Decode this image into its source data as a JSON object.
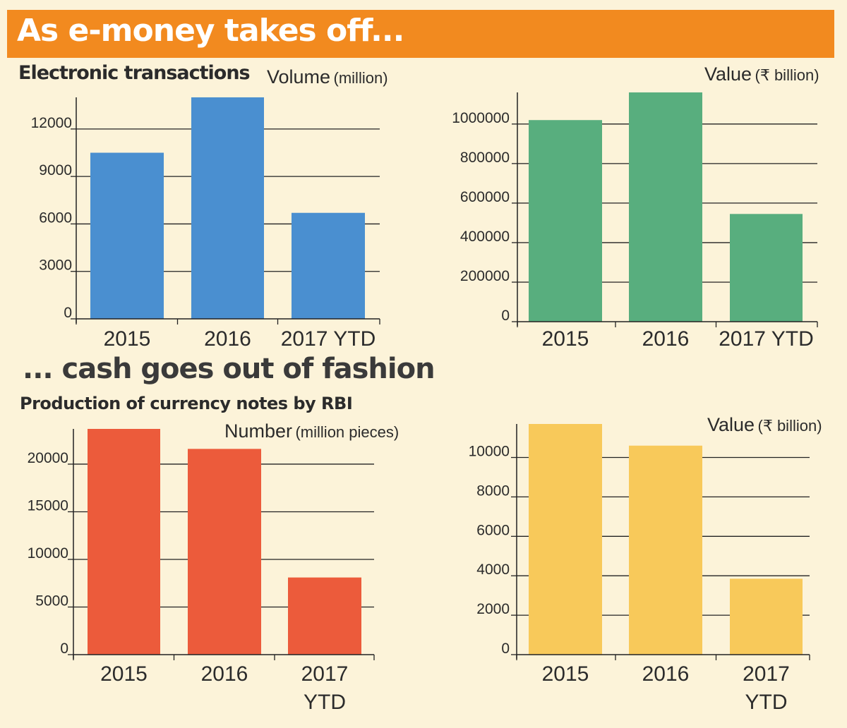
{
  "banner": {
    "title": "As e-money takes off..."
  },
  "sections": {
    "emoney_title": "Electronic transactions",
    "cash_headline": "... cash goes out of fashion",
    "cash_title": "Production of currency notes by RBI"
  },
  "units": {
    "volume_main": "Volume",
    "volume_paren": "(million)",
    "value_main": "Value",
    "value_paren": "(₹ billion)",
    "number_main": "Number",
    "number_paren": "(million pieces)"
  },
  "colors": {
    "banner": "#f28a1f",
    "background": "#fcf3d9",
    "blue": "#4a8fd0",
    "green": "#58ae7e",
    "red": "#ec5b3b",
    "yellow": "#f8c95a"
  },
  "chart_data": [
    {
      "type": "bar",
      "title": "Electronic transactions",
      "ylabel": "Volume (million)",
      "categories": [
        "2015",
        "2016",
        "2017 YTD"
      ],
      "values": [
        10500,
        14000,
        6700
      ],
      "ylim": [
        0,
        14000
      ],
      "ticks": [
        0,
        3000,
        6000,
        9000,
        12000
      ],
      "tick_labels": [
        "0",
        "3000",
        "6000",
        "9000",
        "12000"
      ],
      "color": "#4a8fd0",
      "grid": true
    },
    {
      "type": "bar",
      "ylabel": "Value (₹ billion)",
      "categories": [
        "2015",
        "2016",
        "2017 YTD"
      ],
      "values": [
        1020000,
        1160000,
        545000
      ],
      "ylim": [
        0,
        1160000
      ],
      "ticks": [
        0,
        200000,
        400000,
        600000,
        800000,
        1000000
      ],
      "tick_labels": [
        "0",
        "200000",
        "400000",
        "600000",
        "800000",
        "1000000"
      ],
      "color": "#58ae7e",
      "grid": true
    },
    {
      "type": "bar",
      "title": "Production of currency notes by RBI",
      "ylabel": "Number (million pieces)",
      "categories": [
        "2015",
        "2016",
        "2017 YTD"
      ],
      "values": [
        23700,
        21600,
        8100
      ],
      "ylim": [
        0,
        23700
      ],
      "ticks": [
        0,
        5000,
        10000,
        15000,
        20000
      ],
      "tick_labels": [
        "0",
        "5000",
        "10000",
        "15000",
        "20000"
      ],
      "color": "#ec5b3b",
      "grid": true
    },
    {
      "type": "bar",
      "ylabel": "Value (₹ billion)",
      "categories": [
        "2015",
        "2016",
        "2017 YTD"
      ],
      "values": [
        11700,
        10600,
        3850
      ],
      "ylim": [
        0,
        11700
      ],
      "ticks": [
        0,
        2000,
        4000,
        6000,
        8000,
        10000
      ],
      "tick_labels": [
        "0",
        "2000",
        "4000",
        "6000",
        "8000",
        "10000"
      ],
      "color": "#f8c95a",
      "grid": true
    }
  ]
}
